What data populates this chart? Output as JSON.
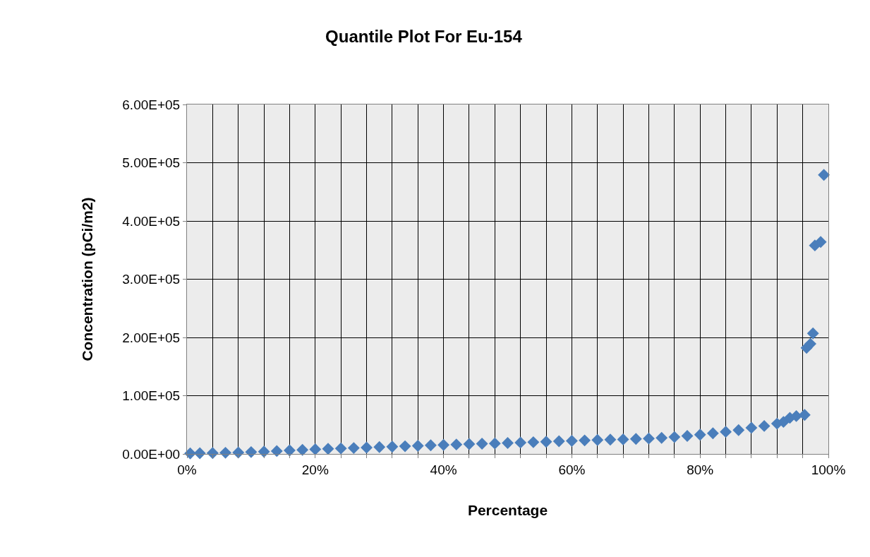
{
  "chart_data": {
    "type": "scatter",
    "title": "Quantile Plot For Eu-154",
    "xlabel": "Percentage",
    "ylabel": "Concentration (pCi/m2)",
    "x": [
      0.005,
      0.02,
      0.04,
      0.06,
      0.08,
      0.1,
      0.12,
      0.14,
      0.16,
      0.18,
      0.2,
      0.22,
      0.24,
      0.26,
      0.28,
      0.3,
      0.32,
      0.34,
      0.36,
      0.38,
      0.4,
      0.42,
      0.44,
      0.46,
      0.48,
      0.5,
      0.52,
      0.54,
      0.56,
      0.58,
      0.6,
      0.62,
      0.64,
      0.66,
      0.68,
      0.7,
      0.72,
      0.74,
      0.76,
      0.78,
      0.8,
      0.82,
      0.84,
      0.86,
      0.88,
      0.9,
      0.92,
      0.93,
      0.94,
      0.95,
      0.963,
      0.966,
      0.972,
      0.976,
      0.979,
      0.988,
      0.993
    ],
    "values": [
      1000,
      1200,
      1500,
      2000,
      2500,
      3200,
      4000,
      5000,
      6000,
      7000,
      8000,
      8800,
      9500,
      10200,
      11000,
      11800,
      12500,
      13200,
      14000,
      14800,
      15500,
      16200,
      17000,
      17500,
      18000,
      18800,
      19500,
      20200,
      21000,
      21800,
      22500,
      23200,
      24000,
      24500,
      25000,
      25800,
      26500,
      27500,
      29000,
      31000,
      33000,
      35500,
      38000,
      41000,
      45000,
      48000,
      52000,
      55000,
      62000,
      65000,
      67000,
      182000,
      189000,
      207000,
      358000,
      364000,
      479000
    ],
    "color": "#4a7ebb",
    "marker": "diamond",
    "grid": true,
    "xlim": [
      0,
      1
    ],
    "ylim": [
      0,
      600000
    ],
    "xticks": [
      {
        "value": 0,
        "label": "0%"
      },
      {
        "value": 0.04,
        "label": null
      },
      {
        "value": 0.08,
        "label": null
      },
      {
        "value": 0.12,
        "label": null
      },
      {
        "value": 0.16,
        "label": null
      },
      {
        "value": 0.2,
        "label": "20%"
      },
      {
        "value": 0.24,
        "label": null
      },
      {
        "value": 0.28,
        "label": null
      },
      {
        "value": 0.32,
        "label": null
      },
      {
        "value": 0.36,
        "label": null
      },
      {
        "value": 0.4,
        "label": "40%"
      },
      {
        "value": 0.44,
        "label": null
      },
      {
        "value": 0.48,
        "label": null
      },
      {
        "value": 0.52,
        "label": null
      },
      {
        "value": 0.56,
        "label": null
      },
      {
        "value": 0.6,
        "label": "60%"
      },
      {
        "value": 0.64,
        "label": null
      },
      {
        "value": 0.68,
        "label": null
      },
      {
        "value": 0.72,
        "label": null
      },
      {
        "value": 0.76,
        "label": null
      },
      {
        "value": 0.8,
        "label": "80%"
      },
      {
        "value": 0.84,
        "label": null
      },
      {
        "value": 0.88,
        "label": null
      },
      {
        "value": 0.92,
        "label": null
      },
      {
        "value": 0.96,
        "label": null
      },
      {
        "value": 1,
        "label": "100%"
      }
    ],
    "yticks": [
      {
        "value": 0,
        "label": "0.00E+00"
      },
      {
        "value": 100000,
        "label": "1.00E+05"
      },
      {
        "value": 200000,
        "label": "2.00E+05"
      },
      {
        "value": 300000,
        "label": "3.00E+05"
      },
      {
        "value": 400000,
        "label": "4.00E+05"
      },
      {
        "value": 500000,
        "label": "5.00E+05"
      },
      {
        "value": 600000,
        "label": "6.00E+05"
      }
    ]
  }
}
